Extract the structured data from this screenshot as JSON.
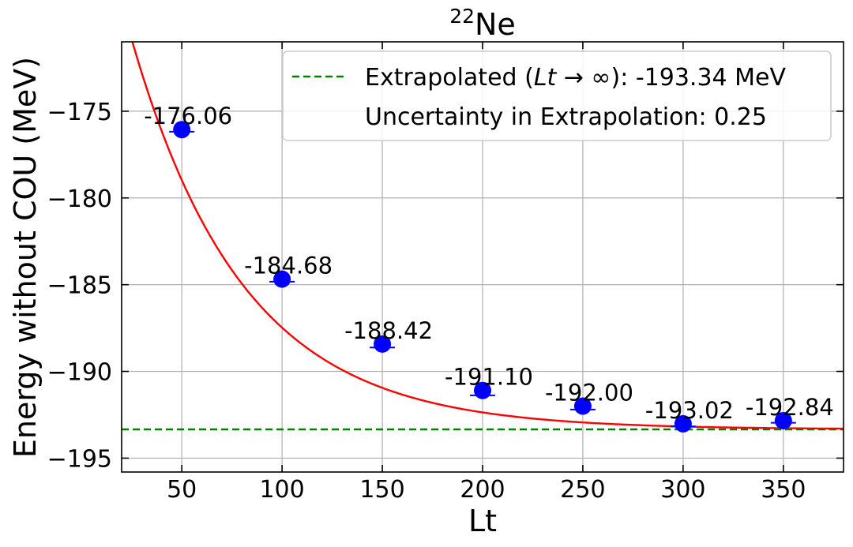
{
  "chart_data": {
    "type": "scatter",
    "title": "Ne",
    "title_superscript": "22",
    "xlabel": "Lt",
    "ylabel": "Energy without COU (MeV)",
    "xlim": [
      20,
      380
    ],
    "ylim": [
      -195.8,
      -171
    ],
    "xticks": [
      50,
      100,
      150,
      200,
      250,
      300,
      350
    ],
    "yticks": [
      -175,
      -180,
      -185,
      -190,
      -195
    ],
    "grid": true,
    "series": [
      {
        "name": "data",
        "marker": "circle",
        "color": "#0000ff",
        "x": [
          50,
          100,
          150,
          200,
          250,
          300,
          350
        ],
        "y": [
          -176.06,
          -184.68,
          -188.42,
          -191.1,
          -192.0,
          -193.02,
          -192.84
        ],
        "yerr": [
          0.12,
          0.15,
          0.2,
          0.28,
          0.2,
          0.15,
          0.12
        ],
        "labels": [
          "-176.06",
          "-184.68",
          "-188.42",
          "-191.10",
          "-192.00",
          "-193.02",
          "-192.84"
        ]
      }
    ],
    "fit": {
      "name": "fit curve",
      "color": "#ff0000",
      "form": "E_inf + A * exp(-Lt / tau)",
      "E_inf": -193.34,
      "A": 35.2,
      "tau": 55.8
    },
    "extrapolation": {
      "value": -193.34,
      "color": "#008000",
      "style": "dashed"
    },
    "legend": {
      "position": "top-right",
      "entries": [
        {
          "prefix": "Extrapolated (",
          "italic": "Lt",
          "suffix": " → ∞): -193.34 MeV",
          "swatch": "green-dashed"
        },
        {
          "text": "Uncertainty in Extrapolation: 0.25",
          "swatch": "none"
        }
      ]
    }
  }
}
